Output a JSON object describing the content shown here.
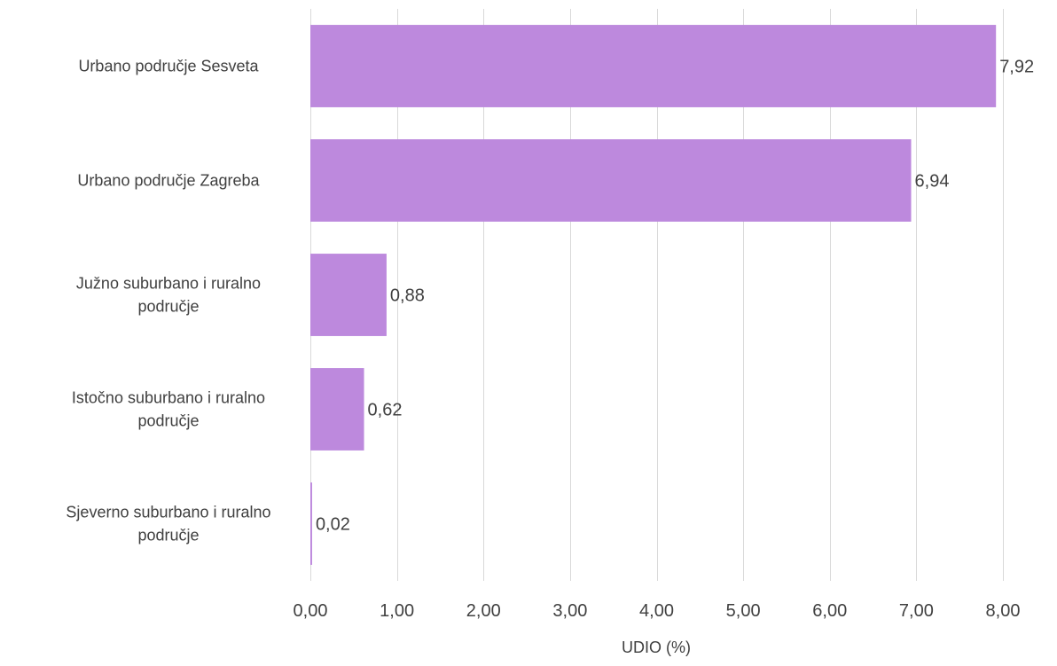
{
  "chart_data": {
    "type": "bar",
    "orientation": "horizontal",
    "categories": [
      "Urbano područje Sesveta",
      "Urbano područje Zagreba",
      "Južno suburbano i ruralno područje",
      "Istočno suburbano i ruralno područje",
      "Sjeverno suburbano i ruralno područje"
    ],
    "category_lines": [
      [
        "Urbano područje Sesveta"
      ],
      [
        "Urbano područje Zagreba"
      ],
      [
        "Južno suburbano i ruralno",
        "područje"
      ],
      [
        "Istočno suburbano i ruralno",
        "područje"
      ],
      [
        "Sjeverno suburbano i ruralno",
        "područje"
      ]
    ],
    "values": [
      7.92,
      6.94,
      0.88,
      0.62,
      0.02
    ],
    "value_labels": [
      "7,92",
      "6,94",
      "0,88",
      "0,62",
      "0,02"
    ],
    "xlabel": "UDIO (%)",
    "ylabel": "",
    "title": "",
    "xlim": [
      0,
      8
    ],
    "ticks": [
      0,
      1,
      2,
      3,
      4,
      5,
      6,
      7,
      8
    ],
    "tick_labels": [
      "0,00",
      "1,00",
      "2,00",
      "3,00",
      "4,00",
      "5,00",
      "6,00",
      "7,00",
      "8,00"
    ],
    "grid": true,
    "bar_color": "#bd89dd",
    "grid_color": "#d9d9d9",
    "text_color": "#404040"
  }
}
